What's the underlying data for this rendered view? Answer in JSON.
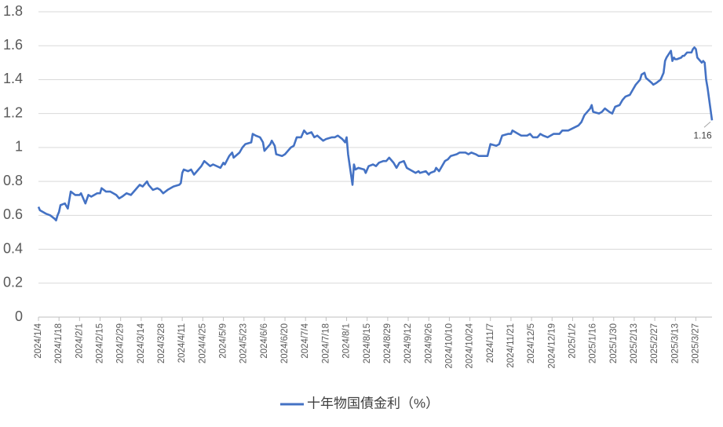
{
  "chart_data": {
    "type": "line",
    "x": [
      "2024/1/4",
      "2024/1/5",
      "2024/1/9",
      "2024/1/12",
      "2024/1/15",
      "2024/1/16",
      "2024/1/17",
      "2024/1/18",
      "2024/1/19",
      "2024/1/22",
      "2024/1/24",
      "2024/1/26",
      "2024/1/29",
      "2024/2/1",
      "2024/2/2",
      "2024/2/5",
      "2024/2/7",
      "2024/2/9",
      "2024/2/13",
      "2024/2/15",
      "2024/2/16",
      "2024/2/19",
      "2024/2/22",
      "2024/2/26",
      "2024/2/28",
      "2024/3/1",
      "2024/3/4",
      "2024/3/7",
      "2024/3/11",
      "2024/3/13",
      "2024/3/15",
      "2024/3/18",
      "2024/3/19",
      "2024/3/22",
      "2024/3/25",
      "2024/3/27",
      "2024/3/29",
      "2024/4/1",
      "2024/4/3",
      "2024/4/5",
      "2024/4/9",
      "2024/4/10",
      "2024/4/11",
      "2024/4/12",
      "2024/4/15",
      "2024/4/17",
      "2024/4/19",
      "2024/4/22",
      "2024/4/24",
      "2024/4/26",
      "2024/4/30",
      "2024/5/2",
      "2024/5/7",
      "2024/5/9",
      "2024/5/10",
      "2024/5/13",
      "2024/5/15",
      "2024/5/16",
      "2024/5/20",
      "2024/5/22",
      "2024/5/24",
      "2024/5/28",
      "2024/5/29",
      "2024/5/31",
      "2024/6/3",
      "2024/6/5",
      "2024/6/6",
      "2024/6/10",
      "2024/6/11",
      "2024/6/13",
      "2024/6/14",
      "2024/6/18",
      "2024/6/20",
      "2024/6/24",
      "2024/6/26",
      "2024/6/28",
      "2024/7/1",
      "2024/7/3",
      "2024/7/5",
      "2024/7/8",
      "2024/7/10",
      "2024/7/12",
      "2024/7/16",
      "2024/7/18",
      "2024/7/22",
      "2024/7/24",
      "2024/7/26",
      "2024/7/29",
      "2024/7/31",
      "2024/8/1",
      "2024/8/2",
      "2024/8/5",
      "2024/8/6",
      "2024/8/7",
      "2024/8/9",
      "2024/8/13",
      "2024/8/14",
      "2024/8/16",
      "2024/8/19",
      "2024/8/21",
      "2024/8/23",
      "2024/8/26",
      "2024/8/28",
      "2024/8/30",
      "2024/9/2",
      "2024/9/4",
      "2024/9/6",
      "2024/9/9",
      "2024/9/11",
      "2024/9/13",
      "2024/9/17",
      "2024/9/19",
      "2024/9/20",
      "2024/9/24",
      "2024/9/26",
      "2024/9/27",
      "2024/9/30",
      "2024/10/1",
      "2024/10/3",
      "2024/10/7",
      "2024/10/9",
      "2024/10/11",
      "2024/10/15",
      "2024/10/17",
      "2024/10/21",
      "2024/10/23",
      "2024/10/25",
      "2024/10/28",
      "2024/10/30",
      "2024/11/1",
      "2024/11/5",
      "2024/11/7",
      "2024/11/11",
      "2024/11/13",
      "2024/11/15",
      "2024/11/19",
      "2024/11/21",
      "2024/11/22",
      "2024/11/26",
      "2024/11/28",
      "2024/12/2",
      "2024/12/4",
      "2024/12/6",
      "2024/12/9",
      "2024/12/11",
      "2024/12/13",
      "2024/12/16",
      "2024/12/18",
      "2024/12/20",
      "2024/12/24",
      "2024/12/26",
      "2024/12/30",
      "2025/1/6",
      "2025/1/8",
      "2025/1/10",
      "2025/1/14",
      "2025/1/15",
      "2025/1/16",
      "2025/1/20",
      "2025/1/22",
      "2025/1/24",
      "2025/1/27",
      "2025/1/29",
      "2025/1/31",
      "2025/2/3",
      "2025/2/5",
      "2025/2/7",
      "2025/2/10",
      "2025/2/12",
      "2025/2/14",
      "2025/2/17",
      "2025/2/18",
      "2025/2/20",
      "2025/2/21",
      "2025/2/25",
      "2025/2/26",
      "2025/2/28",
      "2025/3/3",
      "2025/3/4",
      "2025/3/5",
      "2025/3/6",
      "2025/3/7",
      "2025/3/10",
      "2025/3/11",
      "2025/3/12",
      "2025/3/13",
      "2025/3/14",
      "2025/3/17",
      "2025/3/18",
      "2025/3/19",
      "2025/3/21",
      "2025/3/24",
      "2025/3/25",
      "2025/3/26",
      "2025/3/27",
      "2025/3/28",
      "2025/3/31",
      "2025/4/1",
      "2025/4/2",
      "2025/4/3",
      "2025/4/4",
      "2025/4/7"
    ],
    "series": [
      {
        "name": "十年物国債金利（%）",
        "color": "#4472c4",
        "values": [
          0.65,
          0.63,
          0.61,
          0.6,
          0.58,
          0.57,
          0.6,
          0.62,
          0.66,
          0.67,
          0.64,
          0.74,
          0.72,
          0.72,
          0.73,
          0.67,
          0.72,
          0.71,
          0.73,
          0.73,
          0.76,
          0.74,
          0.74,
          0.72,
          0.7,
          0.71,
          0.73,
          0.72,
          0.76,
          0.78,
          0.77,
          0.8,
          0.78,
          0.75,
          0.76,
          0.75,
          0.73,
          0.75,
          0.76,
          0.77,
          0.78,
          0.79,
          0.85,
          0.87,
          0.86,
          0.87,
          0.84,
          0.87,
          0.89,
          0.92,
          0.89,
          0.9,
          0.88,
          0.91,
          0.9,
          0.95,
          0.97,
          0.94,
          0.97,
          1.0,
          1.02,
          1.03,
          1.08,
          1.07,
          1.06,
          1.03,
          0.98,
          1.02,
          1.04,
          1.01,
          0.96,
          0.95,
          0.96,
          1.0,
          1.01,
          1.06,
          1.06,
          1.1,
          1.08,
          1.09,
          1.06,
          1.07,
          1.04,
          1.05,
          1.06,
          1.06,
          1.07,
          1.05,
          1.03,
          1.06,
          0.96,
          0.78,
          0.9,
          0.87,
          0.88,
          0.87,
          0.85,
          0.89,
          0.9,
          0.89,
          0.91,
          0.92,
          0.92,
          0.94,
          0.91,
          0.88,
          0.91,
          0.92,
          0.88,
          0.87,
          0.85,
          0.86,
          0.85,
          0.86,
          0.84,
          0.85,
          0.86,
          0.88,
          0.86,
          0.92,
          0.93,
          0.95,
          0.96,
          0.97,
          0.97,
          0.96,
          0.97,
          0.96,
          0.95,
          0.95,
          0.95,
          1.02,
          1.01,
          1.02,
          1.07,
          1.08,
          1.08,
          1.1,
          1.08,
          1.07,
          1.07,
          1.08,
          1.06,
          1.06,
          1.08,
          1.07,
          1.06,
          1.07,
          1.08,
          1.08,
          1.1,
          1.1,
          1.13,
          1.15,
          1.19,
          1.23,
          1.25,
          1.21,
          1.2,
          1.21,
          1.23,
          1.21,
          1.2,
          1.24,
          1.25,
          1.28,
          1.3,
          1.31,
          1.34,
          1.37,
          1.4,
          1.43,
          1.44,
          1.41,
          1.38,
          1.37,
          1.38,
          1.4,
          1.42,
          1.44,
          1.51,
          1.53,
          1.57,
          1.51,
          1.53,
          1.52,
          1.52,
          1.53,
          1.54,
          1.54,
          1.56,
          1.56,
          1.58,
          1.59,
          1.58,
          1.53,
          1.5,
          1.51,
          1.5,
          1.4,
          1.35,
          1.16
        ]
      }
    ],
    "xlim": [
      "2024/1/4",
      "2025/4/7"
    ],
    "xticks": [
      "2024/1/4",
      "2024/1/18",
      "2024/2/1",
      "2024/2/15",
      "2024/2/29",
      "2024/3/14",
      "2024/3/28",
      "2024/4/11",
      "2024/4/25",
      "2024/5/9",
      "2024/5/23",
      "2024/6/6",
      "2024/6/20",
      "2024/7/4",
      "2024/7/18",
      "2024/8/1",
      "2024/8/15",
      "2024/8/29",
      "2024/9/12",
      "2024/9/26",
      "2024/10/10",
      "2024/10/24",
      "2024/11/7",
      "2024/11/21",
      "2024/12/5",
      "2024/12/19",
      "2025/1/2",
      "2025/1/16",
      "2025/1/30",
      "2025/2/13",
      "2025/2/27",
      "2025/3/13",
      "2025/3/27"
    ],
    "ylim": [
      0,
      1.8
    ],
    "yticks": [
      0,
      0.2,
      0.4,
      0.6,
      0.8,
      1,
      1.2,
      1.4,
      1.6,
      1.8
    ],
    "grid": true,
    "label_last_point": true,
    "legend": "bottom"
  }
}
